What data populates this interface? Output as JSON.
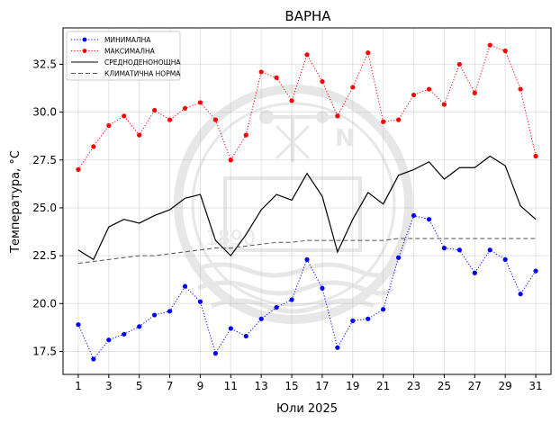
{
  "chart_data": {
    "type": "line",
    "title": "ВАРНА",
    "xlabel": "Юли  2025",
    "ylabel": "Температура,  °C",
    "xlim": [
      0,
      32
    ],
    "ylim": [
      16.3,
      34.4
    ],
    "x_ticks": [
      1,
      3,
      5,
      7,
      9,
      11,
      13,
      15,
      17,
      19,
      21,
      23,
      25,
      27,
      29,
      31
    ],
    "y_ticks": [
      17.5,
      20.0,
      22.5,
      25.0,
      27.5,
      30.0,
      32.5
    ],
    "y_tick_labels": [
      "17.5",
      "20.0",
      "22.5",
      "25.0",
      "27.5",
      "30.0",
      "32.5"
    ],
    "grid": true,
    "legend_position": "top-left",
    "x": [
      1,
      2,
      3,
      4,
      5,
      6,
      7,
      8,
      9,
      10,
      11,
      12,
      13,
      14,
      15,
      16,
      17,
      18,
      19,
      20,
      21,
      22,
      23,
      24,
      25,
      26,
      27,
      28,
      29,
      30,
      31
    ],
    "series": [
      {
        "name": "МИНИМАЛНА",
        "color": "#0000ff",
        "style": "dotted",
        "marker": true,
        "values": [
          18.9,
          17.1,
          18.1,
          18.4,
          18.8,
          19.4,
          19.6,
          20.9,
          20.1,
          17.4,
          18.7,
          18.3,
          19.2,
          19.8,
          20.2,
          22.3,
          20.8,
          17.7,
          19.1,
          19.2,
          19.7,
          22.4,
          24.6,
          24.4,
          22.9,
          22.8,
          21.6,
          22.8,
          22.3,
          20.5,
          21.7
        ]
      },
      {
        "name": "МАКСИМАЛНА",
        "color": "#ff0000",
        "style": "dotted",
        "marker": true,
        "values": [
          27.0,
          28.2,
          29.3,
          29.8,
          28.8,
          30.1,
          29.6,
          30.2,
          30.5,
          29.6,
          27.5,
          28.8,
          32.1,
          31.8,
          30.6,
          33.0,
          31.6,
          29.8,
          31.3,
          33.1,
          29.5,
          29.6,
          30.9,
          31.2,
          30.4,
          32.5,
          31.0,
          33.5,
          33.2,
          31.2,
          27.7
        ]
      },
      {
        "name": "СРЕДНОДЕНОНОЩНА",
        "color": "#000000",
        "style": "solid",
        "marker": false,
        "values": [
          22.8,
          22.3,
          24.0,
          24.4,
          24.2,
          24.6,
          24.9,
          25.5,
          25.7,
          23.3,
          22.5,
          23.6,
          24.9,
          25.7,
          25.4,
          26.8,
          25.6,
          22.7,
          24.4,
          25.8,
          25.2,
          26.7,
          27.0,
          27.4,
          26.5,
          27.1,
          27.1,
          27.7,
          27.2,
          25.1,
          24.4
        ]
      },
      {
        "name": "КЛИМАТИЧНА НОРМА",
        "color": "#555555",
        "style": "dashed",
        "marker": false,
        "values": [
          22.1,
          22.2,
          22.3,
          22.4,
          22.5,
          22.5,
          22.6,
          22.7,
          22.8,
          22.9,
          22.9,
          23.0,
          23.1,
          23.2,
          23.2,
          23.3,
          23.3,
          23.3,
          23.3,
          23.3,
          23.3,
          23.4,
          23.4,
          23.4,
          23.4,
          23.4,
          23.4,
          23.4,
          23.4,
          23.4,
          23.4
        ]
      }
    ]
  },
  "watermark": {
    "icon": "institute-seal-watermark",
    "letter": "N",
    "year_text": "1890"
  }
}
